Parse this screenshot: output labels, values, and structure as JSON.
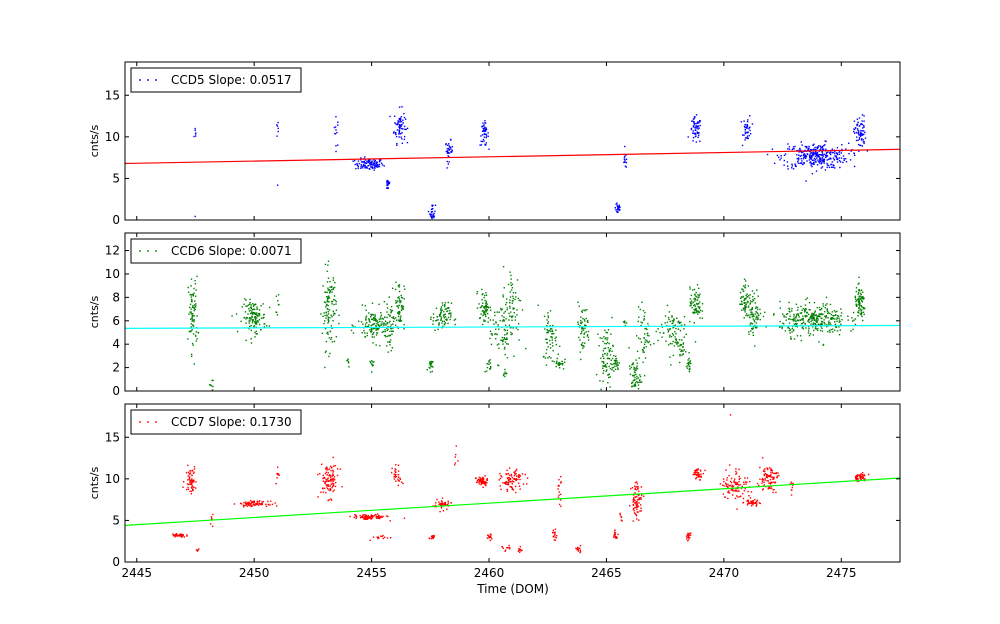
{
  "chart_data": {
    "type": "scatter",
    "xlabel": "Time (DOM)",
    "xlim": [
      2444.5,
      2477.5
    ],
    "xticks": [
      "2445",
      "2450",
      "2455",
      "2460",
      "2465",
      "2470",
      "2475"
    ],
    "panels": [
      {
        "name": "CCD5",
        "legend": "CCD5 Slope: 0.0517",
        "point_color": "#0000ff",
        "fit_color": "#ff0000",
        "ylabel": "cnts/s",
        "ylim": [
          0,
          19
        ],
        "yticks": [
          "0",
          "5",
          "10",
          "15"
        ],
        "fit": {
          "x0": 2444.5,
          "y0": 6.8,
          "x1": 2477.5,
          "y1": 8.5
        },
        "clusters": [
          {
            "x": 2447.5,
            "y": 10.3,
            "n": 6,
            "sx": 0.03,
            "sy": 0.5
          },
          {
            "x": 2447.5,
            "y": 0.4,
            "n": 1,
            "sx": 0.01,
            "sy": 0.1
          },
          {
            "x": 2451.0,
            "y": 11.2,
            "n": 6,
            "sx": 0.03,
            "sy": 0.8
          },
          {
            "x": 2451.0,
            "y": 4.3,
            "n": 1,
            "sx": 0.01,
            "sy": 0.1
          },
          {
            "x": 2453.5,
            "y": 10.6,
            "n": 12,
            "sx": 0.05,
            "sy": 0.9
          },
          {
            "x": 2454.9,
            "y": 6.7,
            "n": 110,
            "sx": 0.3,
            "sy": 0.35
          },
          {
            "x": 2455.7,
            "y": 4.3,
            "n": 22,
            "sx": 0.05,
            "sy": 0.4
          },
          {
            "x": 2456.2,
            "y": 11.3,
            "n": 70,
            "sx": 0.12,
            "sy": 1.0
          },
          {
            "x": 2457.6,
            "y": 0.9,
            "n": 30,
            "sx": 0.06,
            "sy": 0.5
          },
          {
            "x": 2458.3,
            "y": 8.3,
            "n": 35,
            "sx": 0.08,
            "sy": 0.6
          },
          {
            "x": 2459.8,
            "y": 10.3,
            "n": 45,
            "sx": 0.09,
            "sy": 0.7
          },
          {
            "x": 2465.5,
            "y": 1.5,
            "n": 28,
            "sx": 0.06,
            "sy": 0.5
          },
          {
            "x": 2465.8,
            "y": 7.2,
            "n": 14,
            "sx": 0.05,
            "sy": 0.5
          },
          {
            "x": 2468.8,
            "y": 10.7,
            "n": 60,
            "sx": 0.12,
            "sy": 0.8
          },
          {
            "x": 2471.0,
            "y": 11.0,
            "n": 40,
            "sx": 0.09,
            "sy": 0.8
          },
          {
            "x": 2473.9,
            "y": 7.7,
            "n": 320,
            "sx": 0.7,
            "sy": 0.75
          },
          {
            "x": 2475.8,
            "y": 10.5,
            "n": 70,
            "sx": 0.12,
            "sy": 1.0
          }
        ]
      },
      {
        "name": "CCD6",
        "legend": "CCD6 Slope: 0.0071",
        "point_color": "#008000",
        "fit_color": "#00ffff",
        "ylabel": "cnts/s",
        "ylim": [
          0,
          13.5
        ],
        "yticks": [
          "0",
          "2",
          "4",
          "6",
          "8",
          "10",
          "12"
        ],
        "fit": {
          "x0": 2444.5,
          "y0": 5.35,
          "x1": 2477.5,
          "y1": 5.6
        },
        "clusters": [
          {
            "x": 2447.4,
            "y": 6.5,
            "n": 80,
            "sx": 0.1,
            "sy": 1.6
          },
          {
            "x": 2448.2,
            "y": 0.4,
            "n": 10,
            "sx": 0.05,
            "sy": 0.3
          },
          {
            "x": 2450.0,
            "y": 6.3,
            "n": 130,
            "sx": 0.25,
            "sy": 0.7
          },
          {
            "x": 2451.0,
            "y": 7.6,
            "n": 8,
            "sx": 0.03,
            "sy": 0.5
          },
          {
            "x": 2453.2,
            "y": 7.0,
            "n": 110,
            "sx": 0.15,
            "sy": 1.7
          },
          {
            "x": 2454.0,
            "y": 2.3,
            "n": 6,
            "sx": 0.05,
            "sy": 0.3
          },
          {
            "x": 2455.2,
            "y": 5.6,
            "n": 160,
            "sx": 0.4,
            "sy": 0.7
          },
          {
            "x": 2455.0,
            "y": 2.3,
            "n": 10,
            "sx": 0.05,
            "sy": 0.3
          },
          {
            "x": 2455.8,
            "y": 5.4,
            "n": 30,
            "sx": 0.1,
            "sy": 1.0
          },
          {
            "x": 2456.2,
            "y": 7.5,
            "n": 60,
            "sx": 0.1,
            "sy": 1.0
          },
          {
            "x": 2457.5,
            "y": 2.2,
            "n": 20,
            "sx": 0.05,
            "sy": 0.25
          },
          {
            "x": 2458.0,
            "y": 6.3,
            "n": 80,
            "sx": 0.2,
            "sy": 0.6
          },
          {
            "x": 2459.8,
            "y": 7.2,
            "n": 60,
            "sx": 0.12,
            "sy": 0.7
          },
          {
            "x": 2460.0,
            "y": 2.1,
            "n": 14,
            "sx": 0.05,
            "sy": 0.3
          },
          {
            "x": 2460.5,
            "y": 5.3,
            "n": 70,
            "sx": 0.25,
            "sy": 1.3
          },
          {
            "x": 2461.0,
            "y": 7.3,
            "n": 70,
            "sx": 0.2,
            "sy": 1.7
          },
          {
            "x": 2460.7,
            "y": 1.3,
            "n": 8,
            "sx": 0.05,
            "sy": 0.3
          },
          {
            "x": 2462.6,
            "y": 4.8,
            "n": 60,
            "sx": 0.15,
            "sy": 1.2
          },
          {
            "x": 2463.0,
            "y": 2.4,
            "n": 25,
            "sx": 0.1,
            "sy": 0.3
          },
          {
            "x": 2464.0,
            "y": 5.4,
            "n": 60,
            "sx": 0.15,
            "sy": 1.0
          },
          {
            "x": 2465.0,
            "y": 3.0,
            "n": 80,
            "sx": 0.15,
            "sy": 1.2
          },
          {
            "x": 2465.4,
            "y": 2.3,
            "n": 25,
            "sx": 0.08,
            "sy": 0.3
          },
          {
            "x": 2465.8,
            "y": 5.8,
            "n": 6,
            "sx": 0.03,
            "sy": 0.3
          },
          {
            "x": 2466.2,
            "y": 1.2,
            "n": 60,
            "sx": 0.12,
            "sy": 0.7
          },
          {
            "x": 2466.6,
            "y": 4.6,
            "n": 50,
            "sx": 0.15,
            "sy": 1.3
          },
          {
            "x": 2467.8,
            "y": 5.2,
            "n": 90,
            "sx": 0.3,
            "sy": 1.0
          },
          {
            "x": 2468.2,
            "y": 3.5,
            "n": 20,
            "sx": 0.1,
            "sy": 0.5
          },
          {
            "x": 2468.5,
            "y": 2.2,
            "n": 20,
            "sx": 0.05,
            "sy": 0.3
          },
          {
            "x": 2468.8,
            "y": 7.4,
            "n": 70,
            "sx": 0.12,
            "sy": 0.7
          },
          {
            "x": 2470.9,
            "y": 7.8,
            "n": 60,
            "sx": 0.1,
            "sy": 0.8
          },
          {
            "x": 2471.3,
            "y": 6.6,
            "n": 80,
            "sx": 0.15,
            "sy": 0.9
          },
          {
            "x": 2473.8,
            "y": 6.1,
            "n": 320,
            "sx": 0.7,
            "sy": 0.7
          },
          {
            "x": 2475.8,
            "y": 7.4,
            "n": 80,
            "sx": 0.12,
            "sy": 0.7
          }
        ]
      },
      {
        "name": "CCD7",
        "legend": "CCD7 Slope: 0.1730",
        "point_color": "#ff0000",
        "fit_color": "#00ff00",
        "ylabel": "cnts/s",
        "ylim": [
          0,
          19
        ],
        "yticks": [
          "0",
          "5",
          "10",
          "15"
        ],
        "fit": {
          "x0": 2444.5,
          "y0": 4.4,
          "x1": 2477.5,
          "y1": 10.1
        },
        "clusters": [
          {
            "x": 2446.8,
            "y": 3.2,
            "n": 40,
            "sx": 0.15,
            "sy": 0.12
          },
          {
            "x": 2447.3,
            "y": 9.9,
            "n": 60,
            "sx": 0.12,
            "sy": 0.8
          },
          {
            "x": 2447.6,
            "y": 1.6,
            "n": 6,
            "sx": 0.04,
            "sy": 0.2
          },
          {
            "x": 2448.2,
            "y": 5.2,
            "n": 8,
            "sx": 0.04,
            "sy": 0.4
          },
          {
            "x": 2450.0,
            "y": 7.0,
            "n": 80,
            "sx": 0.3,
            "sy": 0.15
          },
          {
            "x": 2451.0,
            "y": 10.8,
            "n": 8,
            "sx": 0.03,
            "sy": 0.8
          },
          {
            "x": 2453.2,
            "y": 9.8,
            "n": 100,
            "sx": 0.2,
            "sy": 1.0
          },
          {
            "x": 2454.9,
            "y": 5.4,
            "n": 90,
            "sx": 0.35,
            "sy": 0.15
          },
          {
            "x": 2455.5,
            "y": 3.0,
            "n": 14,
            "sx": 0.25,
            "sy": 0.15
          },
          {
            "x": 2456.1,
            "y": 10.3,
            "n": 30,
            "sx": 0.1,
            "sy": 0.6
          },
          {
            "x": 2457.6,
            "y": 3.0,
            "n": 20,
            "sx": 0.05,
            "sy": 0.15
          },
          {
            "x": 2458.0,
            "y": 6.9,
            "n": 50,
            "sx": 0.2,
            "sy": 0.3
          },
          {
            "x": 2458.6,
            "y": 12.3,
            "n": 6,
            "sx": 0.03,
            "sy": 0.6
          },
          {
            "x": 2459.7,
            "y": 9.7,
            "n": 60,
            "sx": 0.12,
            "sy": 0.3
          },
          {
            "x": 2460.0,
            "y": 3.0,
            "n": 16,
            "sx": 0.05,
            "sy": 0.2
          },
          {
            "x": 2460.7,
            "y": 1.6,
            "n": 10,
            "sx": 0.1,
            "sy": 0.2
          },
          {
            "x": 2461.0,
            "y": 9.8,
            "n": 90,
            "sx": 0.25,
            "sy": 0.6
          },
          {
            "x": 2461.3,
            "y": 1.4,
            "n": 10,
            "sx": 0.05,
            "sy": 0.2
          },
          {
            "x": 2462.8,
            "y": 3.3,
            "n": 16,
            "sx": 0.05,
            "sy": 0.3
          },
          {
            "x": 2463.0,
            "y": 8.5,
            "n": 16,
            "sx": 0.05,
            "sy": 0.9
          },
          {
            "x": 2463.8,
            "y": 1.6,
            "n": 14,
            "sx": 0.1,
            "sy": 0.2
          },
          {
            "x": 2465.4,
            "y": 3.3,
            "n": 16,
            "sx": 0.05,
            "sy": 0.3
          },
          {
            "x": 2465.6,
            "y": 5.5,
            "n": 6,
            "sx": 0.03,
            "sy": 0.4
          },
          {
            "x": 2466.3,
            "y": 7.5,
            "n": 80,
            "sx": 0.12,
            "sy": 1.1
          },
          {
            "x": 2468.5,
            "y": 3.1,
            "n": 18,
            "sx": 0.05,
            "sy": 0.2
          },
          {
            "x": 2468.9,
            "y": 10.6,
            "n": 40,
            "sx": 0.12,
            "sy": 0.3
          },
          {
            "x": 2470.5,
            "y": 9.3,
            "n": 100,
            "sx": 0.3,
            "sy": 1.0
          },
          {
            "x": 2470.3,
            "y": 17.8,
            "n": 1,
            "sx": 0.01,
            "sy": 0.1
          },
          {
            "x": 2471.2,
            "y": 7.1,
            "n": 40,
            "sx": 0.15,
            "sy": 0.2
          },
          {
            "x": 2471.9,
            "y": 10.1,
            "n": 90,
            "sx": 0.2,
            "sy": 0.8
          },
          {
            "x": 2472.9,
            "y": 9.1,
            "n": 10,
            "sx": 0.04,
            "sy": 0.5
          },
          {
            "x": 2475.8,
            "y": 10.2,
            "n": 50,
            "sx": 0.15,
            "sy": 0.25
          }
        ]
      }
    ]
  }
}
